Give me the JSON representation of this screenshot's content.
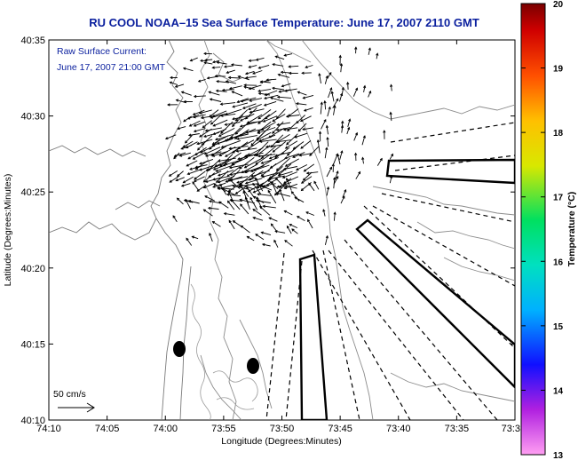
{
  "title": "RU COOL   NOAA–15  Sea Surface Temperature:  June 17, 2007 2110 GMT",
  "current_overlay": {
    "label": "Raw Surface Current:",
    "timestamp": "June 17, 2007 21:00 GMT"
  },
  "axes": {
    "xlabel": "Longitude (Degrees:Minutes)",
    "ylabel": "Latitude (Degrees:Minutes)",
    "x_ticks": [
      "74:10",
      "74:05",
      "74:00",
      "73:55",
      "73:50",
      "73:45",
      "73:40",
      "73:35",
      "73:3"
    ],
    "y_ticks": [
      "40:35",
      "40:30",
      "40:25",
      "40:20",
      "40:15",
      "40:10"
    ]
  },
  "colorbar": {
    "title": "Temperature (°C)",
    "ticks": [
      "20",
      "19",
      "18",
      "17",
      "16",
      "15",
      "14",
      "13"
    ],
    "range": [
      13,
      20
    ],
    "colors": [
      "#ff9ff2",
      "#b020e0",
      "#1010ff",
      "#00c8ff",
      "#00e060",
      "#e8e800",
      "#ff8000",
      "#e00000",
      "#7a0000"
    ]
  },
  "scale": {
    "label": "50 cm/s"
  }
}
